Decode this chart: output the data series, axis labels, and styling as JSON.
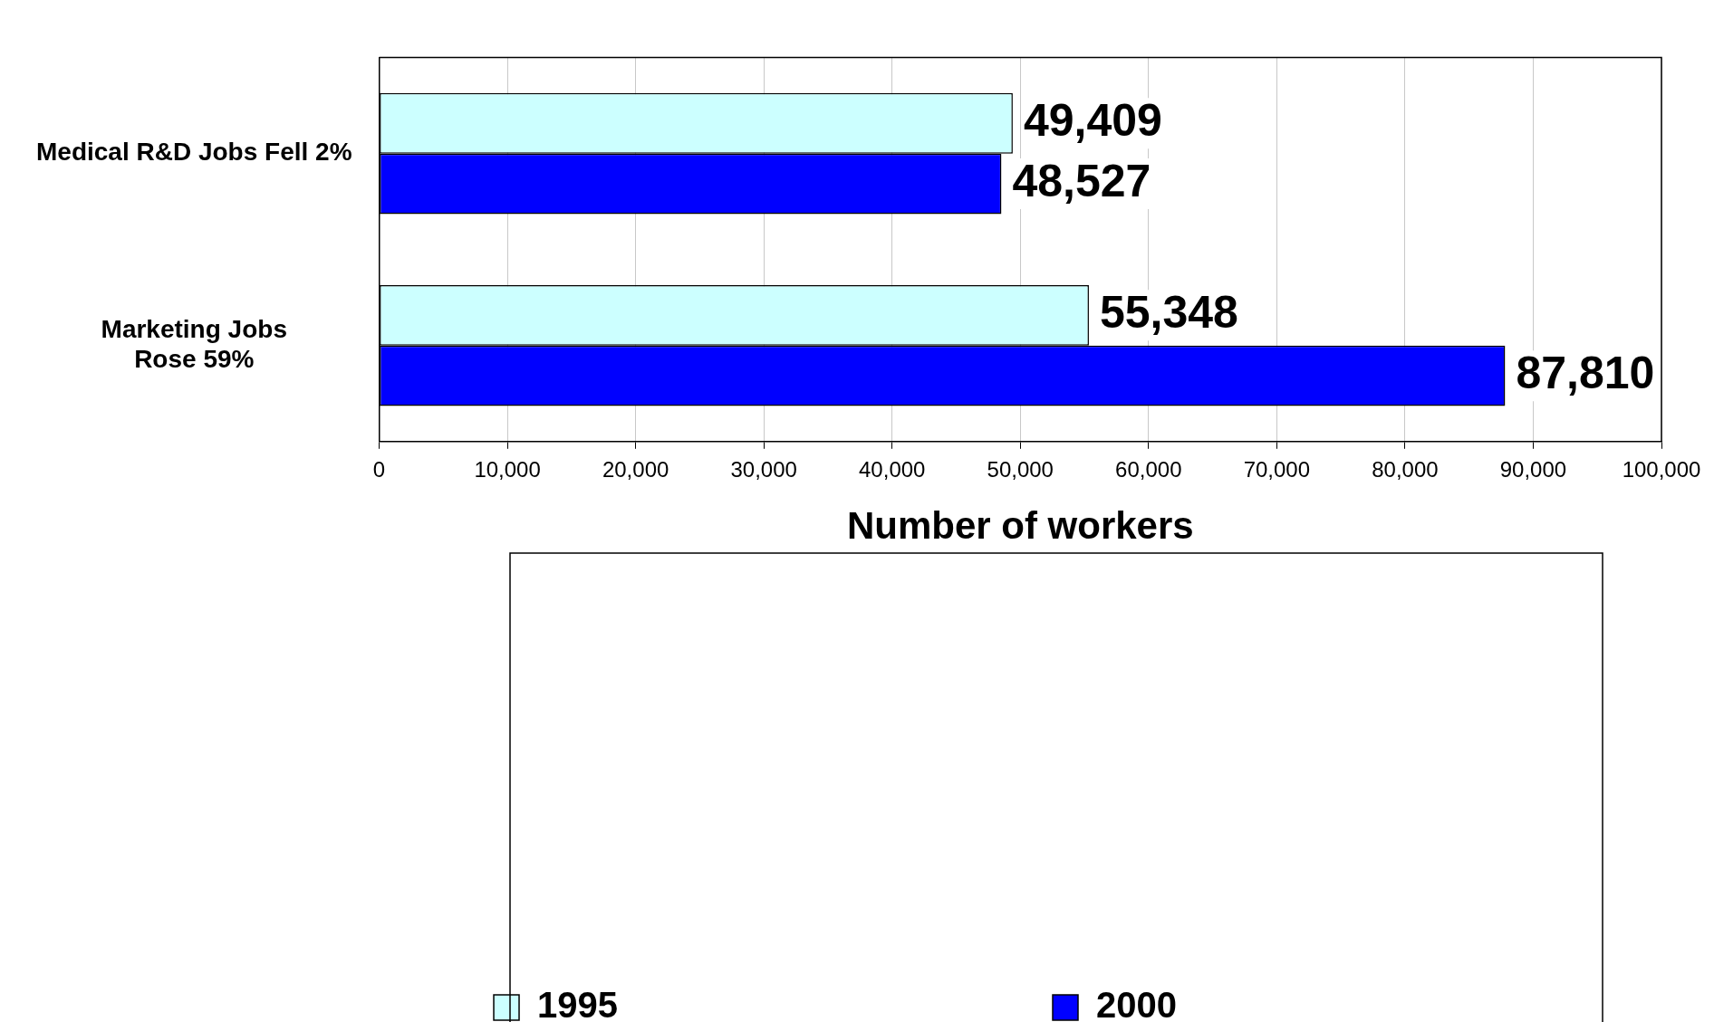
{
  "chart_data": {
    "type": "bar",
    "orientation": "horizontal",
    "xlabel": "Number of workers",
    "categories": [
      "Medical R&D Jobs Fell 2%",
      "Marketing Jobs\nRose 59%"
    ],
    "series": [
      {
        "name": "1995",
        "color": "#ccffff",
        "values": [
          49409,
          55348
        ],
        "value_labels": [
          "49,409",
          "55,348"
        ]
      },
      {
        "name": "2000",
        "color": "#0000ff",
        "values": [
          48527,
          87810
        ],
        "value_labels": [
          "48,527",
          "87,810"
        ]
      }
    ],
    "xlim": [
      0,
      100000
    ],
    "xticks": [
      0,
      {
        "value": 10000,
        "label": "10,000"
      },
      {
        "value": 20000,
        "label": "20,000"
      },
      {
        "value": 30000,
        "label": "30,000"
      },
      {
        "value": 40000,
        "label": "40,000"
      },
      {
        "value": 50000,
        "label": "50,000"
      },
      {
        "value": 60000,
        "label": "60,000"
      },
      {
        "value": 70000,
        "label": "70,000"
      },
      {
        "value": 80000,
        "label": "80,000"
      },
      {
        "value": 90000,
        "label": "90,000"
      },
      {
        "value": 100000,
        "label": "100,000"
      }
    ],
    "grid": "x",
    "legend": "bottom"
  }
}
